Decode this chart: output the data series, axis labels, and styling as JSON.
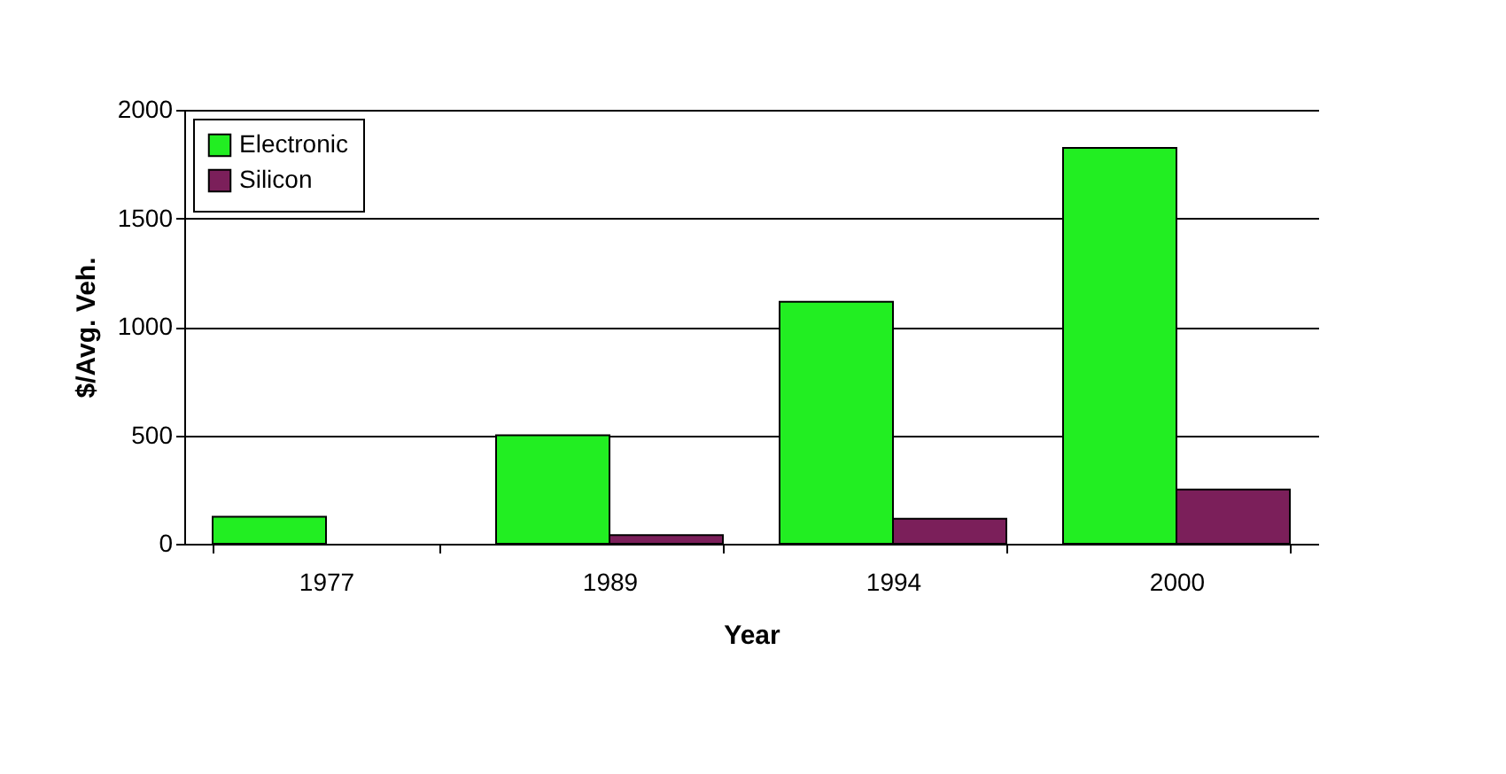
{
  "chart_data": {
    "type": "bar",
    "xlabel": "Year",
    "ylabel": "$/Avg. Veh.",
    "categories": [
      "1977",
      "1989",
      "1994",
      "2000"
    ],
    "series": [
      {
        "name": "Electronic",
        "color": "#22ee22",
        "values": [
          125,
          500,
          1115,
          1825
        ]
      },
      {
        "name": "Silicon",
        "color": "#7b1f5a",
        "values": [
          null,
          40,
          115,
          250
        ]
      }
    ],
    "ylim": [
      0,
      2000
    ],
    "yticks": [
      0,
      500,
      1000,
      1500,
      2000
    ],
    "grid": "y",
    "legend": "top left"
  }
}
